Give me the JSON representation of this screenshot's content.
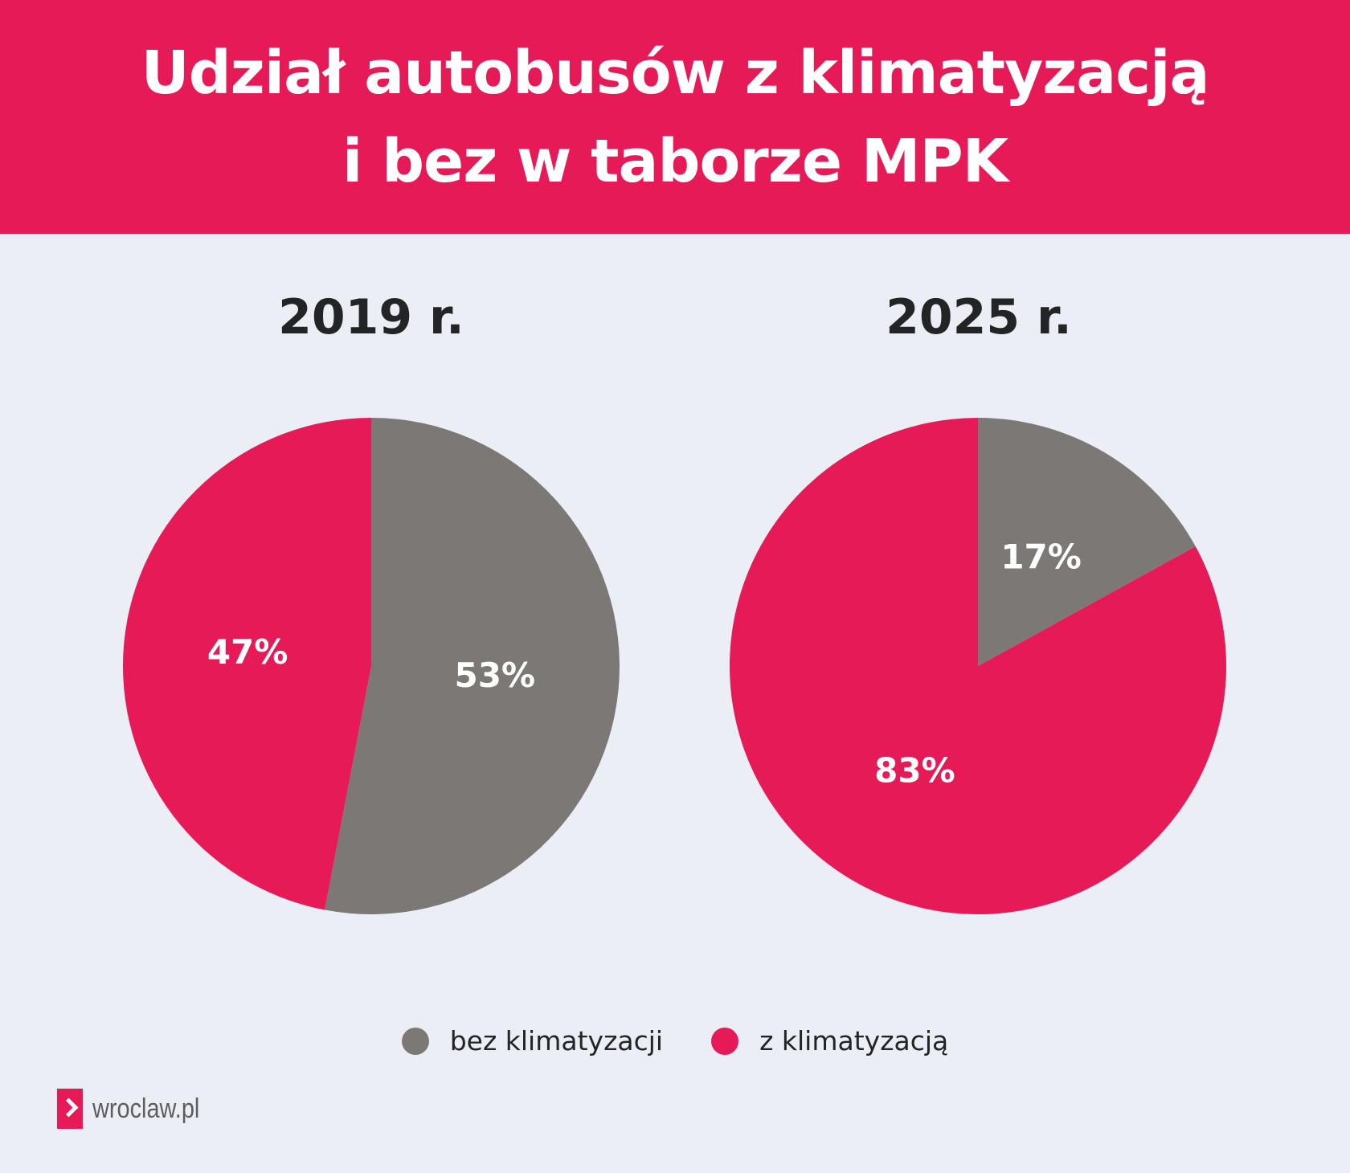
{
  "header": {
    "title_line1": "Udział autobusów z klimatyzacją",
    "title_line2": "i bez w taborze MPK"
  },
  "colors": {
    "accent": "#E51A57",
    "gray": "#7B7876",
    "background": "#ECEEF5",
    "text_dark": "#222426"
  },
  "chart_data": [
    {
      "type": "pie",
      "title": "2019 r.",
      "categories": [
        "bez klimatyzacji",
        "z klimatyzacją"
      ],
      "values": [
        53,
        47
      ],
      "labels": [
        "53%",
        "47%"
      ],
      "colors": [
        "#7B7876",
        "#E51A57"
      ],
      "start_angle": "12 o'clock, clockwise"
    },
    {
      "type": "pie",
      "title": "2025 r.",
      "categories": [
        "bez klimatyzacji",
        "z klimatyzacją"
      ],
      "values": [
        17,
        83
      ],
      "labels": [
        "17%",
        "83%"
      ],
      "colors": [
        "#7B7876",
        "#E51A57"
      ],
      "start_angle": "12 o'clock, clockwise"
    }
  ],
  "legend": {
    "placement": "bottom",
    "items": [
      {
        "label": "bez klimatyzacji",
        "color": "#7B7876"
      },
      {
        "label": "z klimatyzacją",
        "color": "#E51A57"
      }
    ]
  },
  "footer": {
    "logo_text": "wroclaw.pl",
    "logo_icon": "chevron-right-icon"
  }
}
